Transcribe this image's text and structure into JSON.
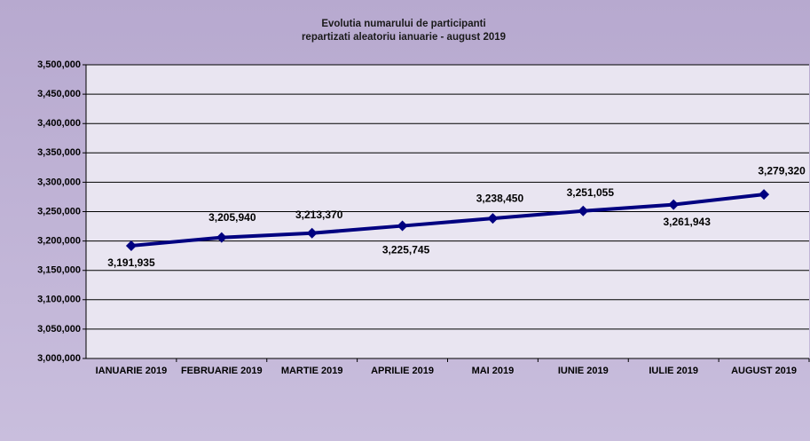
{
  "chart_data": {
    "type": "line",
    "title": "Evolutia numarului de participanti",
    "subtitle": "repartizati aleatoriu ianuarie - august 2019",
    "categories": [
      "IANUARIE 2019",
      "FEBRUARIE 2019",
      "MARTIE 2019",
      "APRILIE 2019",
      "MAI 2019",
      "IUNIE 2019",
      "IULIE 2019",
      "AUGUST 2019"
    ],
    "series": [
      {
        "color": "#000080",
        "values": [
          3191935,
          3205940,
          3213370,
          3225745,
          3238450,
          3251055,
          3261943,
          3279320
        ],
        "value_labels": [
          "3,191,935",
          "3,205,940",
          "3,213,370",
          "3,225,745",
          "3,238,450",
          "3,251,055",
          "3,261,943",
          "3,279,320"
        ]
      }
    ],
    "ylim": [
      3000000,
      3500000
    ],
    "yticks": [
      {
        "value": 3000000,
        "label": "3,000,000"
      },
      {
        "value": 3050000,
        "label": "3,050,000"
      },
      {
        "value": 3100000,
        "label": "3,100,000"
      },
      {
        "value": 3150000,
        "label": "3,150,000"
      },
      {
        "value": 3200000,
        "label": "3,200,000"
      },
      {
        "value": 3250000,
        "label": "3,250,000"
      },
      {
        "value": 3300000,
        "label": "3,300,000"
      },
      {
        "value": 3350000,
        "label": "3,350,000"
      },
      {
        "value": 3400000,
        "label": "3,400,000"
      },
      {
        "value": 3450000,
        "label": "3,450,000"
      },
      {
        "value": 3500000,
        "label": "3,500,000"
      }
    ],
    "grid": true
  }
}
